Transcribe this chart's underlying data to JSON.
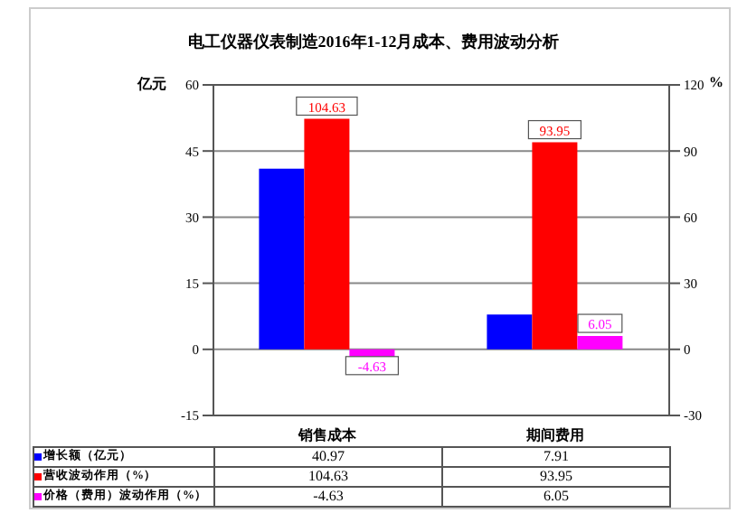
{
  "chart_data": {
    "type": "bar",
    "title": "电工仪器仪表制造2016年1-12月成本、费用波动分析",
    "ylabel": "亿元",
    "y2label": "%",
    "categories": [
      "销售成本",
      "期间费用"
    ],
    "series": [
      {
        "name": "增长额（亿元）",
        "color": "#0000ff",
        "values": [
          40.97,
          7.91
        ]
      },
      {
        "name": "营收波动作用（%）",
        "color": "#ff0000",
        "values": [
          104.63,
          93.95
        ],
        "axis": "y2",
        "value_labels": [
          "104.63",
          "93.95"
        ]
      },
      {
        "name": "价格（费用）波动作用（%）",
        "color": "#ff00ff",
        "values": [
          -4.63,
          6.05
        ],
        "axis": "y2",
        "value_labels": [
          "-4.63",
          "6.05"
        ]
      }
    ],
    "ylim": [
      -15,
      60
    ],
    "yticks": [
      -15,
      0,
      15,
      30,
      45,
      60
    ],
    "y2lim": [
      -30,
      120
    ],
    "y2ticks": [
      -30,
      0,
      30,
      60,
      90,
      120
    ],
    "grid": "y",
    "data_labels": true,
    "legend": "bottom left"
  }
}
